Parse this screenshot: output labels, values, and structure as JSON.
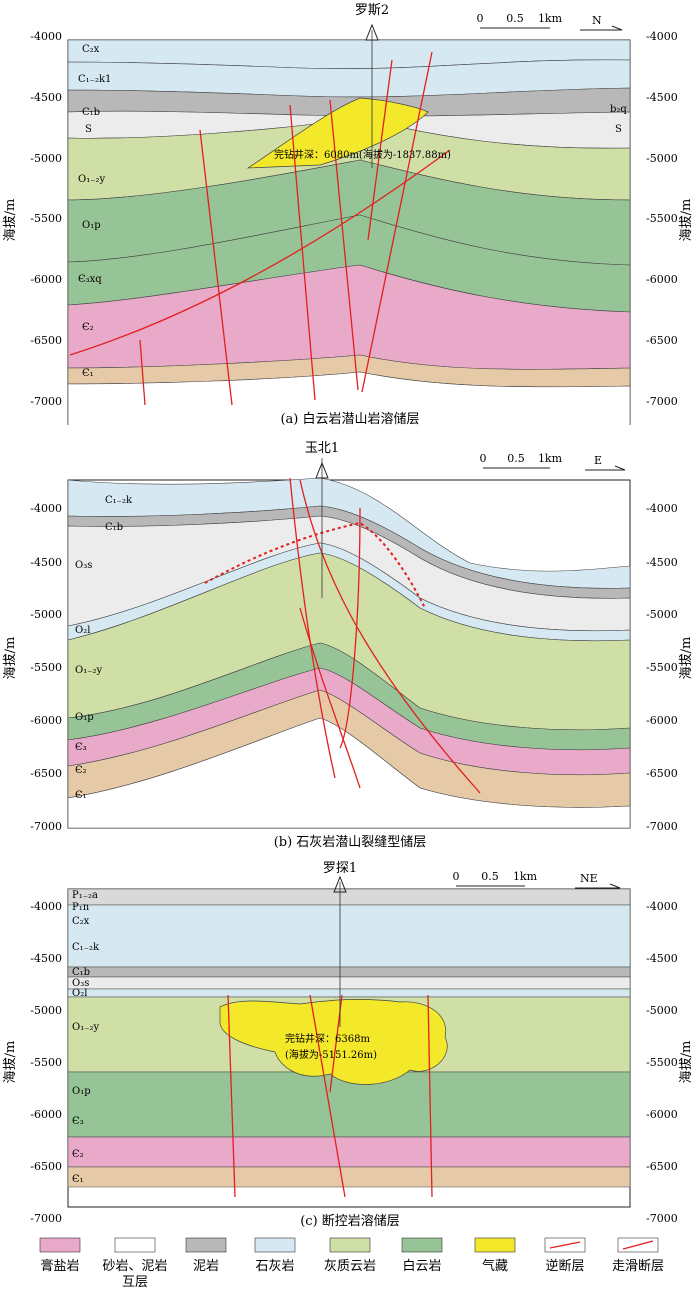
{
  "colors": {
    "gypsum": "#e9a9c9",
    "mudstone": "#b8b8b8",
    "limestone": "#d6e9f2",
    "limy_dolomite": "#cfdfa5",
    "dolomite": "#97c496",
    "gas": "#f3e829",
    "sandstone": "#ececec",
    "sandy_dolomite": "#e6caa7",
    "fault": "#e41e1e"
  },
  "scale": {
    "zero": "0",
    "mid": "0.5",
    "km": "1km"
  },
  "panels": [
    {
      "well": "罗斯2",
      "direction": "N",
      "caption": "(a) 白云岩潜山岩溶储层",
      "ylabel": "海拔/m",
      "ticks": [
        "-4000",
        "-4500",
        "-5000",
        "-5500",
        "-6000",
        "-6500",
        "-7000"
      ],
      "unit_labels": [
        "C₂x",
        "C₁₋₂k1",
        "C₁b",
        "S",
        "O₁₋₂y",
        "O₁p",
        "Є₃xq",
        "Є₂",
        "Є₁",
        "b₂q",
        "S"
      ],
      "well_note": "完钻井深：6080m(海拔为-1837.88m)"
    },
    {
      "well": "玉北1",
      "direction": "E",
      "caption": "(b) 石灰岩潜山裂缝型储层",
      "ylabel": "海拔/m",
      "ticks": [
        "-4000",
        "-4500",
        "-5000",
        "-5500",
        "-6000",
        "-6500",
        "-7000"
      ],
      "unit_labels": [
        "C₁₋₂k",
        "C₁b",
        "O₃s",
        "O₂l",
        "O₁₋₂y",
        "O₁p",
        "Є₃",
        "Є₂",
        "Є₁"
      ]
    },
    {
      "well": "罗探1",
      "direction": "NE",
      "caption": "(c) 断控岩溶储层",
      "ylabel": "海拔/m",
      "ticks": [
        "-4000",
        "-4500",
        "-5000",
        "-5500",
        "-6000",
        "-6500",
        "-7000"
      ],
      "unit_labels": [
        "P₁₋₂a",
        "P₁n",
        "C₂x",
        "C₁₋₂k",
        "C₁b",
        "O₃s",
        "O₂l",
        "O₁₋₂y",
        "O₁p",
        "Є₃",
        "Є₂",
        "Є₁"
      ],
      "well_note_1": "完钻井深：6368m",
      "well_note_2": "(海拔为-5151.26m)"
    }
  ],
  "legend": [
    {
      "label": "膏盐岩",
      "icon": "gypsum-swatch"
    },
    {
      "label": "砂岩、泥岩",
      "label2": "互层",
      "icon": "sand-mud-swatch"
    },
    {
      "label": "泥岩",
      "icon": "mudstone-swatch"
    },
    {
      "label": "石灰岩",
      "icon": "limestone-swatch"
    },
    {
      "label": "灰质云岩",
      "icon": "limy-dolomite-swatch"
    },
    {
      "label": "白云岩",
      "icon": "dolomite-swatch"
    },
    {
      "label": "气藏",
      "icon": "gas-swatch"
    },
    {
      "label": "逆断层",
      "icon": "reverse-fault-swatch"
    },
    {
      "label": "走滑断层",
      "icon": "strike-slip-fault-swatch"
    }
  ]
}
